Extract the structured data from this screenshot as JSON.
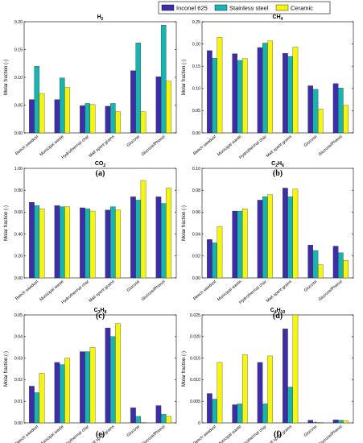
{
  "legend": {
    "entries": [
      {
        "label": "Inconel 625",
        "color": "#3d2ea8"
      },
      {
        "label": "Stainless steel",
        "color": "#19b3b0"
      },
      {
        "label": "Ceramic",
        "color": "#f5f50f"
      }
    ]
  },
  "y_axis_label": "Molar fraction (-)",
  "chart_data": [
    {
      "type": "bar",
      "panel": "(a)",
      "title": {
        "main": "H",
        "sub": "2"
      },
      "categories": [
        "Beech sawdust",
        "Municipal waste",
        "Hydrothermal char",
        "Malt spent grains",
        "Glucose",
        "Glucose/Phenol"
      ],
      "series": [
        {
          "name": "Inconel 625",
          "values": [
            0.06,
            0.06,
            0.049,
            0.048,
            0.112,
            0.101
          ]
        },
        {
          "name": "Stainless steel",
          "values": [
            0.12,
            0.099,
            0.053,
            0.053,
            0.162,
            0.194
          ]
        },
        {
          "name": "Ceramic",
          "values": [
            0.071,
            0.082,
            0.051,
            0.038,
            0.038,
            0.093
          ]
        }
      ],
      "ylabel": "Molar fraction (-)",
      "ylim": [
        0,
        0.2
      ],
      "yticks": [
        0,
        0.05,
        0.1,
        0.15,
        0.2
      ],
      "ytick_labels": [
        "0.00",
        "0.05",
        "0.10",
        "0.15",
        "0.20"
      ],
      "grid": false
    },
    {
      "type": "bar",
      "panel": "(b)",
      "title": {
        "main": "CH",
        "sub": "4"
      },
      "categories": [
        "Beech sawdust",
        "Municipal waste",
        "Hydrothermal char",
        "Malt spent grains",
        "Glucose",
        "Glucose/Phenol"
      ],
      "series": [
        {
          "name": "Inconel 625",
          "values": [
            0.185,
            0.178,
            0.192,
            0.179,
            0.106,
            0.111
          ]
        },
        {
          "name": "Stainless steel",
          "values": [
            0.168,
            0.163,
            0.202,
            0.172,
            0.098,
            0.101
          ]
        },
        {
          "name": "Ceramic",
          "values": [
            0.215,
            0.167,
            0.207,
            0.193,
            0.054,
            0.062
          ]
        }
      ],
      "ylabel": "Molar fraction (-)",
      "ylim": [
        0,
        0.25
      ],
      "yticks": [
        0,
        0.05,
        0.1,
        0.15,
        0.2,
        0.25
      ],
      "ytick_labels": [
        "0.00",
        "0.05",
        "0.10",
        "0.15",
        "0.20",
        "0.25"
      ],
      "grid": false
    },
    {
      "type": "bar",
      "panel": "(c)",
      "title": {
        "main": "CO",
        "sub": "2"
      },
      "categories": [
        "Beech sawdust",
        "Municipal waste",
        "Hydrothermal char",
        "Malt spent grains",
        "Glucose",
        "Glucose/Phenol"
      ],
      "series": [
        {
          "name": "Inconel 625",
          "values": [
            0.69,
            0.66,
            0.64,
            0.62,
            0.74,
            0.74
          ]
        },
        {
          "name": "Stainless steel",
          "values": [
            0.66,
            0.65,
            0.63,
            0.65,
            0.71,
            0.68
          ]
        },
        {
          "name": "Ceramic",
          "values": [
            0.63,
            0.65,
            0.61,
            0.62,
            0.89,
            0.82
          ]
        }
      ],
      "ylabel": "Molar fraction (-)",
      "ylim": [
        0,
        1.0
      ],
      "yticks": [
        0,
        0.2,
        0.4,
        0.6,
        0.8,
        1.0
      ],
      "ytick_labels": [
        "0.00",
        "0.20",
        "0.40",
        "0.60",
        "0.80",
        "1.00"
      ],
      "grid": false
    },
    {
      "type": "bar",
      "panel": "(d)",
      "title": {
        "main": "C",
        "sub": "2",
        "main2": "H",
        "sub2": "6"
      },
      "categories": [
        "Beech sawdust",
        "Municipal waste",
        "Hydrothermal char",
        "Malt spent grains",
        "Glucose",
        "Glucose/Phenol"
      ],
      "series": [
        {
          "name": "Inconel 625",
          "values": [
            0.035,
            0.061,
            0.071,
            0.082,
            0.03,
            0.029
          ]
        },
        {
          "name": "Stainless steel",
          "values": [
            0.032,
            0.061,
            0.074,
            0.074,
            0.025,
            0.023
          ]
        },
        {
          "name": "Ceramic",
          "values": [
            0.047,
            0.063,
            0.076,
            0.081,
            0.012,
            0.016
          ]
        }
      ],
      "ylabel": "Molar fraction (-)",
      "ylim": [
        0,
        0.1
      ],
      "yticks": [
        0,
        0.02,
        0.04,
        0.06,
        0.08,
        0.1
      ],
      "ytick_labels": [
        "0.00",
        "0.02",
        "0.04",
        "0.06",
        "0.08",
        "0.10"
      ],
      "grid": false
    },
    {
      "type": "bar",
      "panel": "(e)",
      "title": {
        "main": "C",
        "sub": "3",
        "main2": "H",
        "sub2": "8"
      },
      "categories": [
        "Beech sawdust",
        "Municipal waste",
        "Hydrothermal char",
        "Malt spent grains",
        "Glucose",
        "Glucose/Phenol"
      ],
      "series": [
        {
          "name": "Inconel 625",
          "values": [
            0.017,
            0.028,
            0.033,
            0.044,
            0.007,
            0.008
          ]
        },
        {
          "name": "Stainless steel",
          "values": [
            0.014,
            0.027,
            0.033,
            0.04,
            0.003,
            0.004
          ]
        },
        {
          "name": "Ceramic",
          "values": [
            0.023,
            0.03,
            0.035,
            0.046,
            0.0002,
            0.003
          ]
        }
      ],
      "ylabel": "Molar fraction (-)",
      "ylim": [
        0,
        0.05
      ],
      "yticks": [
        0,
        0.01,
        0.02,
        0.03,
        0.04,
        0.05
      ],
      "ytick_labels": [
        "0.00",
        "0.01",
        "0.02",
        "0.03",
        "0.04",
        "0.05"
      ],
      "grid": false
    },
    {
      "type": "bar",
      "panel": "(f)",
      "title": {
        "main": "C",
        "sub": "4",
        "main2": "H",
        "sub2": "10"
      },
      "categories": [
        "Beech sawdust",
        "Municipal waste",
        "Hydrothermal char",
        "Malt spent grains",
        "Glucose",
        "Glucose/Phenol"
      ],
      "series": [
        {
          "name": "Inconel 625",
          "values": [
            0.0068,
            0.0042,
            0.014,
            0.0218,
            0.0006,
            0.0007
          ]
        },
        {
          "name": "Stainless steel",
          "values": [
            0.0055,
            0.0044,
            0.0044,
            0.0083,
            0.0001,
            0.0006
          ]
        },
        {
          "name": "Ceramic",
          "values": [
            0.014,
            0.0158,
            0.0155,
            0.025,
            0.0001,
            0.0005
          ]
        }
      ],
      "ylabel": "Molar fraction (-)",
      "ylim": [
        0,
        0.025
      ],
      "yticks": [
        0,
        0.005,
        0.01,
        0.015,
        0.02,
        0.025
      ],
      "ytick_labels": [
        "0",
        "0.005",
        "0.010",
        "0.015",
        "0.020",
        "0.025"
      ],
      "grid": false
    }
  ]
}
